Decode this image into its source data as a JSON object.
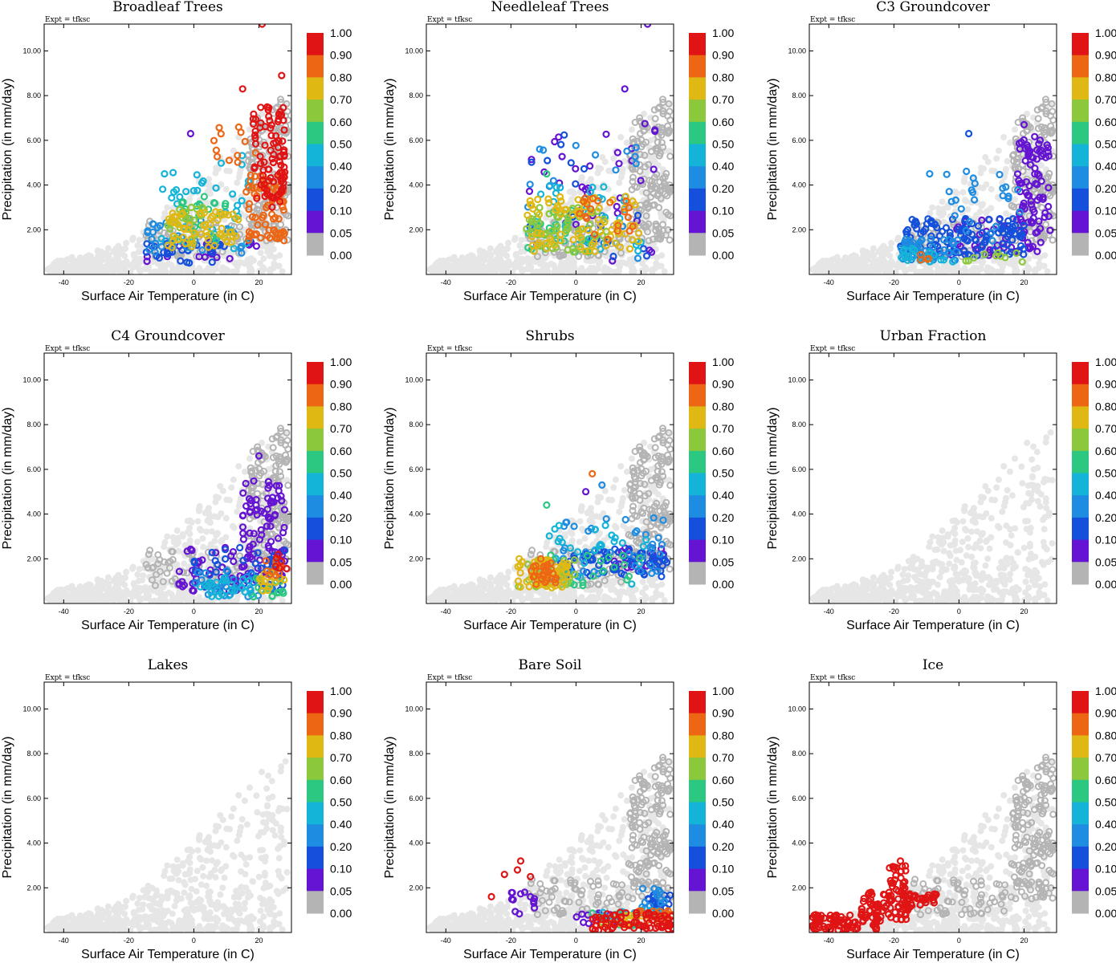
{
  "figure": {
    "experiment_label": "Expt = tfksc",
    "x_axis_label": "Surface Air Temperature (in C)",
    "y_axis_label": "Precipitation (in mm/day)",
    "x_ticks": [
      -40,
      -20,
      0,
      20
    ],
    "x_tick_labels": [
      "-40",
      "-20",
      "0",
      "20"
    ],
    "y_ticks": [
      2,
      4,
      6,
      8,
      10
    ],
    "y_tick_labels": [
      "2.00",
      "4.00",
      "6.00",
      "8.00",
      "10.00"
    ],
    "xlim": [
      -46,
      30
    ],
    "ylim": [
      0,
      11.2
    ],
    "colorbar": {
      "labels": [
        "1.00",
        "0.90",
        "0.80",
        "0.70",
        "0.60",
        "0.50",
        "0.40",
        "0.20",
        "0.10",
        "0.05",
        "0.00"
      ],
      "colors": [
        "#e01414",
        "#ec6614",
        "#e0b814",
        "#8cc83c",
        "#2cc882",
        "#14b4d8",
        "#1e8ce0",
        "#1450dc",
        "#6414d2",
        "#b4b4b4"
      ]
    }
  },
  "chart_data": [
    {
      "type": "scatter",
      "title": "Broadleaf Trees",
      "xlabel": "Surface Air Temperature (in C)",
      "ylabel": "Precipitation (in mm/day)",
      "xlim": [
        -46,
        30
      ],
      "ylim": [
        0,
        11.2
      ],
      "clusters": [
        {
          "value": 0.9,
          "x_range": [
            18,
            28
          ],
          "y_range": [
            3.0,
            7.6
          ],
          "n": 90
        },
        {
          "value": 0.8,
          "x_range": [
            16,
            28
          ],
          "y_range": [
            1.5,
            4.5
          ],
          "n": 70
        },
        {
          "value": 0.8,
          "x_range": [
            5,
            22
          ],
          "y_range": [
            4.5,
            6.6
          ],
          "n": 12
        },
        {
          "value": 0.7,
          "x_range": [
            -8,
            14
          ],
          "y_range": [
            1.2,
            2.8
          ],
          "n": 60
        },
        {
          "value": 0.6,
          "x_range": [
            -8,
            6
          ],
          "y_range": [
            1.5,
            3.0
          ],
          "n": 25
        },
        {
          "value": 0.5,
          "x_range": [
            -5,
            10
          ],
          "y_range": [
            1.5,
            3.5
          ],
          "n": 20
        },
        {
          "value": 0.4,
          "x_range": [
            -10,
            20
          ],
          "y_range": [
            1.0,
            5.5
          ],
          "n": 40
        },
        {
          "value": 0.2,
          "x_range": [
            -15,
            15
          ],
          "y_range": [
            0.8,
            2.5
          ],
          "n": 35
        },
        {
          "value": 0.1,
          "x_range": [
            -15,
            10
          ],
          "y_range": [
            0.5,
            1.5
          ],
          "n": 30
        },
        {
          "value": 0.05,
          "x_range": [
            -15,
            20
          ],
          "y_range": [
            0.5,
            1.5
          ],
          "n": 20
        }
      ],
      "extra_points": [
        [
          21,
          11.2,
          0.9
        ],
        [
          27,
          8.9,
          0.9
        ],
        [
          15,
          8.3,
          0.9
        ],
        [
          -1,
          6.3,
          0.05
        ],
        [
          -9,
          4.5,
          0.4
        ]
      ]
    },
    {
      "type": "scatter",
      "title": "Needleleaf Trees",
      "xlabel": "Surface Air Temperature (in C)",
      "ylabel": "Precipitation (in mm/day)",
      "xlim": [
        -46,
        30
      ],
      "ylim": [
        0,
        11.2
      ],
      "clusters": [
        {
          "value": 0.7,
          "x_range": [
            -15,
            20
          ],
          "y_range": [
            1.0,
            3.5
          ],
          "n": 80
        },
        {
          "value": 0.8,
          "x_range": [
            0,
            18
          ],
          "y_range": [
            1.5,
            3.5
          ],
          "n": 20
        },
        {
          "value": 0.6,
          "x_range": [
            -16,
            10
          ],
          "y_range": [
            1.0,
            3.0
          ],
          "n": 50
        },
        {
          "value": 0.5,
          "x_range": [
            -15,
            5
          ],
          "y_range": [
            1.0,
            3.0
          ],
          "n": 30
        },
        {
          "value": 0.4,
          "x_range": [
            -15,
            20
          ],
          "y_range": [
            1.0,
            4.0
          ],
          "n": 30
        },
        {
          "value": 0.2,
          "x_range": [
            -15,
            20
          ],
          "y_range": [
            0.7,
            6.0
          ],
          "n": 20
        },
        {
          "value": 0.1,
          "x_range": [
            -15,
            22
          ],
          "y_range": [
            0.5,
            6.5
          ],
          "n": 20
        },
        {
          "value": 0.05,
          "x_range": [
            -15,
            26
          ],
          "y_range": [
            0.5,
            7.0
          ],
          "n": 35
        }
      ],
      "extra_points": [
        [
          22,
          11.2,
          0.05
        ],
        [
          15,
          8.3,
          0.05
        ],
        [
          -9,
          4.5,
          0.5
        ]
      ]
    },
    {
      "type": "scatter",
      "title": "C3 Groundcover",
      "xlabel": "Surface Air Temperature (in C)",
      "ylabel": "Precipitation (in mm/day)",
      "xlim": [
        -46,
        30
      ],
      "ylim": [
        0,
        11.2
      ],
      "clusters": [
        {
          "value": 0.05,
          "x_range": [
            18,
            28
          ],
          "y_range": [
            1.0,
            6.2
          ],
          "n": 90
        },
        {
          "value": 0.05,
          "x_range": [
            -5,
            20
          ],
          "y_range": [
            0.8,
            2.5
          ],
          "n": 40
        },
        {
          "value": 0.1,
          "x_range": [
            -18,
            20
          ],
          "y_range": [
            0.8,
            2.5
          ],
          "n": 120
        },
        {
          "value": 0.2,
          "x_range": [
            -18,
            0
          ],
          "y_range": [
            0.6,
            1.6
          ],
          "n": 50
        },
        {
          "value": 0.2,
          "x_range": [
            -5,
            20
          ],
          "y_range": [
            1.5,
            5.0
          ],
          "n": 25
        },
        {
          "value": 0.4,
          "x_range": [
            -18,
            0
          ],
          "y_range": [
            0.5,
            1.2
          ],
          "n": 20
        },
        {
          "value": 0.6,
          "x_range": [
            0,
            20
          ],
          "y_range": [
            0.5,
            1.0
          ],
          "n": 10
        },
        {
          "value": 0.8,
          "x_range": [
            -12,
            -8
          ],
          "y_range": [
            0.6,
            1.0
          ],
          "n": 4
        }
      ],
      "extra_points": [
        [
          -9,
          4.5,
          0.2
        ],
        [
          3,
          6.3,
          0.1
        ],
        [
          20,
          6.7,
          0.05
        ]
      ]
    },
    {
      "type": "scatter",
      "title": "C4 Groundcover",
      "xlabel": "Surface Air Temperature (in C)",
      "ylabel": "Precipitation (in mm/day)",
      "xlim": [
        -46,
        30
      ],
      "ylim": [
        0,
        11.2
      ],
      "clusters": [
        {
          "value": 0.05,
          "x_range": [
            15,
            28
          ],
          "y_range": [
            1.0,
            5.5
          ],
          "n": 90
        },
        {
          "value": 0.05,
          "x_range": [
            -5,
            15
          ],
          "y_range": [
            0.5,
            2.5
          ],
          "n": 40
        },
        {
          "value": 0.1,
          "x_range": [
            0,
            28
          ],
          "y_range": [
            0.5,
            2.5
          ],
          "n": 50
        },
        {
          "value": 0.2,
          "x_range": [
            0,
            25
          ],
          "y_range": [
            0.3,
            1.5
          ],
          "n": 30
        },
        {
          "value": 0.4,
          "x_range": [
            2,
            20
          ],
          "y_range": [
            0.3,
            1.2
          ],
          "n": 25
        },
        {
          "value": 0.5,
          "x_range": [
            18,
            28
          ],
          "y_range": [
            0.3,
            1.2
          ],
          "n": 15
        },
        {
          "value": 0.7,
          "x_range": [
            20,
            28
          ],
          "y_range": [
            0.5,
            1.5
          ],
          "n": 15
        },
        {
          "value": 0.8,
          "x_range": [
            22,
            28
          ],
          "y_range": [
            1.0,
            2.0
          ],
          "n": 10
        },
        {
          "value": 0.9,
          "x_range": [
            25,
            29
          ],
          "y_range": [
            1.5,
            2.2
          ],
          "n": 6
        }
      ],
      "extra_points": [
        [
          20,
          6.6,
          0.05
        ]
      ]
    },
    {
      "type": "scatter",
      "title": "Shrubs",
      "xlabel": "Surface Air Temperature (in C)",
      "ylabel": "Precipitation (in mm/day)",
      "xlim": [
        -46,
        30
      ],
      "ylim": [
        0,
        11.2
      ],
      "clusters": [
        {
          "value": 0.7,
          "x_range": [
            -18,
            -2
          ],
          "y_range": [
            0.7,
            2.0
          ],
          "n": 60
        },
        {
          "value": 0.8,
          "x_range": [
            -14,
            -6
          ],
          "y_range": [
            0.8,
            2.0
          ],
          "n": 30
        },
        {
          "value": 0.6,
          "x_range": [
            -18,
            0
          ],
          "y_range": [
            0.7,
            2.0
          ],
          "n": 25
        },
        {
          "value": 0.5,
          "x_range": [
            -10,
            20
          ],
          "y_range": [
            0.8,
            2.2
          ],
          "n": 20
        },
        {
          "value": 0.4,
          "x_range": [
            -10,
            25
          ],
          "y_range": [
            0.8,
            3.5
          ],
          "n": 30
        },
        {
          "value": 0.2,
          "x_range": [
            -5,
            28
          ],
          "y_range": [
            1.2,
            4.0
          ],
          "n": 40
        },
        {
          "value": 0.1,
          "x_range": [
            -5,
            28
          ],
          "y_range": [
            1.2,
            2.5
          ],
          "n": 70
        },
        {
          "value": 0.05,
          "x_range": [
            10,
            28
          ],
          "y_range": [
            1.5,
            2.5
          ],
          "n": 20
        }
      ],
      "extra_points": [
        [
          -9,
          4.4,
          0.5
        ],
        [
          5,
          5.8,
          0.8
        ],
        [
          8,
          5.3,
          0.2
        ],
        [
          3,
          5.0,
          0.05
        ]
      ]
    },
    {
      "type": "scatter",
      "title": "Urban Fraction",
      "xlabel": "Surface Air Temperature (in C)",
      "ylabel": "Precipitation (in mm/day)",
      "xlim": [
        -46,
        30
      ],
      "ylim": [
        0,
        11.2
      ],
      "clusters": [],
      "extra_points": []
    },
    {
      "type": "scatter",
      "title": "Lakes",
      "xlabel": "Surface Air Temperature (in C)",
      "ylabel": "Precipitation (in mm/day)",
      "xlim": [
        -46,
        30
      ],
      "ylim": [
        0,
        11.2
      ],
      "clusters": [],
      "extra_points": []
    },
    {
      "type": "scatter",
      "title": "Bare Soil",
      "xlabel": "Surface Air Temperature (in C)",
      "ylabel": "Precipitation (in mm/day)",
      "xlim": [
        -46,
        30
      ],
      "ylim": [
        0,
        11.2
      ],
      "clusters": [
        {
          "value": 0.9,
          "x_range": [
            5,
            30
          ],
          "y_range": [
            0.1,
            0.9
          ],
          "n": 80
        },
        {
          "value": 0.8,
          "x_range": [
            18,
            30
          ],
          "y_range": [
            0.5,
            1.0
          ],
          "n": 20
        },
        {
          "value": 0.7,
          "x_range": [
            5,
            22
          ],
          "y_range": [
            0.3,
            0.8
          ],
          "n": 15
        },
        {
          "value": 0.5,
          "x_range": [
            5,
            20
          ],
          "y_range": [
            0.3,
            0.9
          ],
          "n": 15
        },
        {
          "value": 0.4,
          "x_range": [
            8,
            28
          ],
          "y_range": [
            0.5,
            1.0
          ],
          "n": 15
        },
        {
          "value": 0.2,
          "x_range": [
            20,
            28
          ],
          "y_range": [
            0.8,
            2.0
          ],
          "n": 15
        },
        {
          "value": 0.1,
          "x_range": [
            22,
            29
          ],
          "y_range": [
            1.0,
            2.0
          ],
          "n": 15
        },
        {
          "value": 0.05,
          "x_range": [
            -20,
            -12
          ],
          "y_range": [
            0.8,
            1.8
          ],
          "n": 12
        },
        {
          "value": 0.05,
          "x_range": [
            0,
            15
          ],
          "y_range": [
            0.4,
            0.9
          ],
          "n": 12
        }
      ],
      "extra_points": [
        [
          -26,
          1.6,
          0.9
        ],
        [
          -22,
          2.6,
          0.9
        ],
        [
          -17,
          3.2,
          0.9
        ],
        [
          -18,
          2.8,
          0.9
        ],
        [
          -14,
          2.5,
          0.9
        ],
        [
          -14,
          1.6,
          0.05
        ]
      ]
    },
    {
      "type": "scatter",
      "title": "Ice",
      "xlabel": "Surface Air Temperature (in C)",
      "ylabel": "Precipitation (in mm/day)",
      "xlim": [
        -46,
        30
      ],
      "ylim": [
        0,
        11.2
      ],
      "clusters": [
        {
          "value": 0.9,
          "x_range": [
            -45,
            -25
          ],
          "y_range": [
            0.1,
            0.8
          ],
          "n": 80
        },
        {
          "value": 0.9,
          "x_range": [
            -30,
            -15
          ],
          "y_range": [
            0.5,
            1.8
          ],
          "n": 70
        },
        {
          "value": 0.9,
          "x_range": [
            -22,
            -16
          ],
          "y_range": [
            1.5,
            3.0
          ],
          "n": 25
        },
        {
          "value": 0.9,
          "x_range": [
            -18,
            -7
          ],
          "y_range": [
            1.2,
            1.8
          ],
          "n": 30
        }
      ],
      "extra_points": [
        [
          -18,
          3.2,
          0.9
        ],
        [
          -27,
          1.8,
          0.9
        ],
        [
          -7,
          1.7,
          0.9
        ]
      ]
    }
  ]
}
